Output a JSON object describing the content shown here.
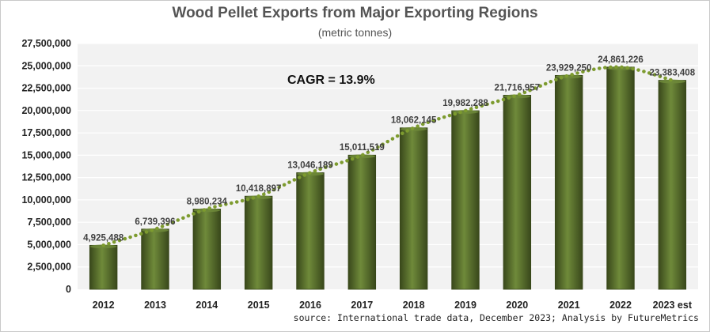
{
  "chart_data": {
    "type": "bar",
    "title": "Wood Pellet Exports from Major Exporting Regions",
    "subtitle": "(metric tonnes)",
    "annotation": "CAGR = 13.9%",
    "categories": [
      "2012",
      "2013",
      "2014",
      "2015",
      "2016",
      "2017",
      "2018",
      "2019",
      "2020",
      "2021",
      "2022",
      "2023 est"
    ],
    "values": [
      4925488,
      6739396,
      8980234,
      10418897,
      13046189,
      15011519,
      18062145,
      19982288,
      21716957,
      23929250,
      24861226,
      23383408
    ],
    "data_labels": [
      "4,925,488",
      "6,739,396",
      "8,980,234",
      "10,418,897",
      "13,046,189",
      "15,011,519",
      "18,062,145",
      "19,982,288",
      "21,716,957",
      "23,929,250",
      "24,861,226",
      "23,383,408"
    ],
    "y_ticks": [
      0,
      2500000,
      5000000,
      7500000,
      10000000,
      12500000,
      15000000,
      17500000,
      20000000,
      22500000,
      25000000,
      27500000
    ],
    "y_tick_labels": [
      "0",
      "2,500,000",
      "5,000,000",
      "7,500,000",
      "10,000,000",
      "12,500,000",
      "15,000,000",
      "17,500,000",
      "20,000,000",
      "22,500,000",
      "25,000,000",
      "27,500,000"
    ],
    "ylim": [
      0,
      27500000
    ],
    "grid": true,
    "trendline": "dotted",
    "colors": {
      "bar": "#4f6228",
      "bar_highlight": "#6f8a3a",
      "bar_dark": "#39481b",
      "trend": "#7d9b2f",
      "plot_bg": "#f2f2f2",
      "grid": "#ffffff"
    }
  },
  "source": "source: International trade data, December 2023; Analysis by FutureMetrics"
}
